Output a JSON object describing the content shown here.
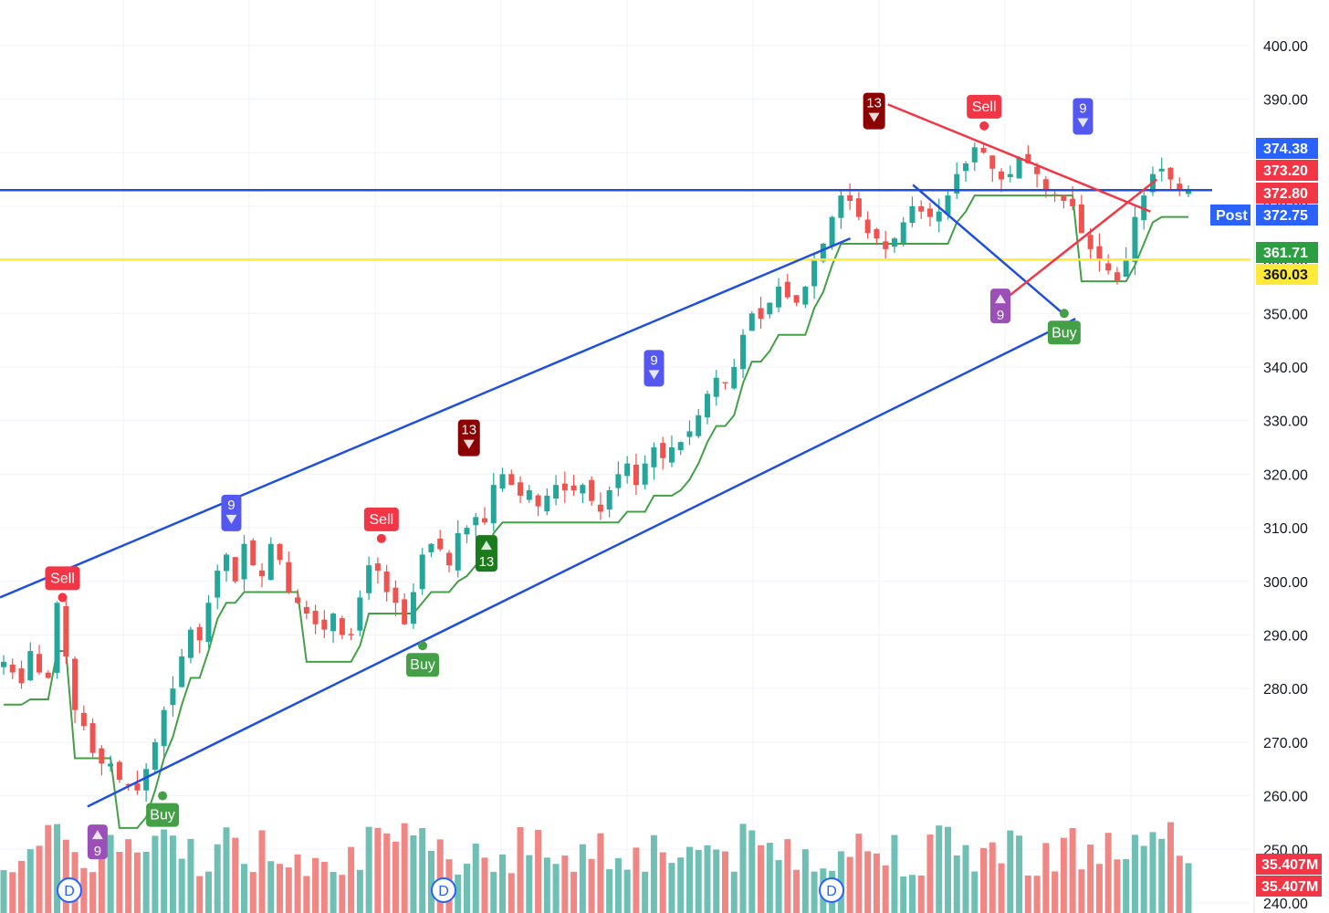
{
  "chart_data": {
    "type": "candlestick",
    "timeframe": "D",
    "ylim": [
      240,
      404
    ],
    "y_ticks": [
      "400.00",
      "390.00",
      "380.00",
      "370.00",
      "360.00",
      "350.00",
      "340.00",
      "330.00",
      "320.00",
      "310.00",
      "300.00",
      "290.00",
      "280.00",
      "270.00",
      "260.00",
      "250.00",
      "240.00"
    ],
    "price_tags": [
      {
        "value": 374.38,
        "label": "374.38",
        "color": "#2962ff"
      },
      {
        "value": 373.2,
        "label": "373.20",
        "color": "#f23645"
      },
      {
        "value": 372.8,
        "label": "372.80",
        "color": "#f23645"
      },
      {
        "value": 372.75,
        "label": "372.75",
        "color": "#2962ff",
        "prefix": "Post"
      },
      {
        "value": 361.71,
        "label": "361.71",
        "color": "#2e9e43"
      },
      {
        "value": 360.03,
        "label": "360.03",
        "color": "#ffe93b"
      }
    ],
    "volume_tags": [
      {
        "label": "35.407M",
        "color": "#f23645"
      },
      {
        "label": "35.407M",
        "color": "#f23645"
      }
    ],
    "horizontal_lines": [
      {
        "value": 373.0,
        "color": "#1f4fe0",
        "name": "resistance"
      },
      {
        "value": 360.03,
        "color": "#ffe93b",
        "name": "support"
      }
    ],
    "channel_lines": [
      {
        "from": [
          0.0,
          297.0
        ],
        "to": [
          0.68,
          364.0
        ],
        "color": "#1f4fe0"
      },
      {
        "from": [
          0.07,
          258.0
        ],
        "to": [
          0.86,
          349.0
        ],
        "color": "#1f4fe0"
      },
      {
        "from": [
          0.73,
          374.0
        ],
        "to": [
          0.85,
          350.0
        ],
        "color": "#1f4fe0"
      },
      {
        "from": [
          0.71,
          389.0
        ],
        "to": [
          0.92,
          369.0
        ],
        "color": "#f23645"
      },
      {
        "from": [
          0.8,
          352.0
        ],
        "to": [
          0.925,
          375.0
        ],
        "color": "#f23645"
      }
    ],
    "signals": [
      {
        "label": "Sell",
        "kind": "sell",
        "x": 0.05,
        "price": 297
      },
      {
        "label": "Buy",
        "kind": "buy",
        "x": 0.13,
        "price": 260
      },
      {
        "label": "9",
        "kind": "td-buy",
        "x": 0.078,
        "price": 256
      },
      {
        "label": "9",
        "kind": "td-sell",
        "x": 0.185,
        "price": 308
      },
      {
        "label": "Sell",
        "kind": "sell",
        "x": 0.305,
        "price": 308
      },
      {
        "label": "Buy",
        "kind": "buy",
        "x": 0.338,
        "price": 288
      },
      {
        "label": "13",
        "kind": "td-sell-13",
        "x": 0.375,
        "price": 322
      },
      {
        "label": "13",
        "kind": "td-buy-13",
        "x": 0.389,
        "price": 310
      },
      {
        "label": "9",
        "kind": "td-sell",
        "x": 0.523,
        "price": 335
      },
      {
        "label": "13",
        "kind": "td-sell-13",
        "x": 0.699,
        "price": 383
      },
      {
        "label": "Sell",
        "kind": "sell",
        "x": 0.787,
        "price": 385
      },
      {
        "label": "9",
        "kind": "td-buy",
        "x": 0.8,
        "price": 356
      },
      {
        "label": "9",
        "kind": "td-sell",
        "x": 0.866,
        "price": 382
      },
      {
        "label": "Buy",
        "kind": "buy",
        "x": 0.851,
        "price": 350
      }
    ],
    "dividend_markers": [
      "D",
      "D",
      "D"
    ],
    "close_series": [
      285,
      283,
      281,
      287,
      283,
      282,
      296,
      286,
      276,
      273,
      268,
      266,
      266,
      263,
      262,
      261,
      265,
      270,
      276,
      280,
      286,
      291,
      289,
      296,
      302,
      305,
      300,
      307,
      303,
      301,
      307,
      304,
      298,
      296,
      294,
      292,
      291,
      294,
      290,
      290,
      297,
      303,
      302,
      298,
      296,
      292,
      298,
      305,
      307,
      306,
      303,
      309,
      310,
      312,
      311,
      318,
      320,
      318,
      316,
      317,
      314,
      316,
      318,
      317,
      317,
      318,
      315,
      313,
      317,
      320,
      322,
      318,
      322,
      325,
      323,
      325,
      326,
      328,
      331,
      335,
      338,
      337,
      340,
      346,
      350,
      349,
      352,
      355,
      353,
      352,
      355,
      360,
      363,
      368,
      372,
      371,
      368,
      365,
      364,
      362,
      364,
      367,
      370,
      369,
      368,
      369,
      372,
      376,
      378,
      381,
      380,
      377,
      375,
      376,
      379,
      378,
      376,
      373,
      372,
      371,
      370,
      365,
      362,
      360,
      358,
      356,
      360,
      368,
      372,
      376,
      377,
      375,
      373,
      373
    ]
  }
}
